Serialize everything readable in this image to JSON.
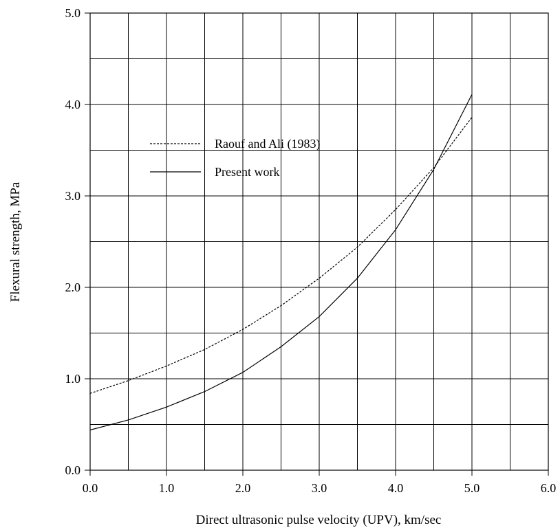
{
  "chart_data": {
    "type": "line",
    "title": "",
    "xlabel": "Direct ultrasonic pulse velocity (UPV), km/sec",
    "ylabel": "Flexural strength, MPa",
    "xlim": [
      0,
      6
    ],
    "ylim": [
      0,
      5
    ],
    "xticks": [
      0,
      1,
      2,
      3,
      4,
      5,
      6
    ],
    "yticks": [
      0,
      1,
      2,
      3,
      4,
      5
    ],
    "xtick_labels": [
      "0.0",
      "1.0",
      "2.0",
      "3.0",
      "4.0",
      "5.0",
      "6.0"
    ],
    "ytick_labels": [
      "0.0",
      "1.0",
      "2.0",
      "3.0",
      "4.0",
      "5.0"
    ],
    "grid": true,
    "grid_x_step": 0.5,
    "grid_y_step": 0.5,
    "legend_position": "upper-left",
    "series": [
      {
        "name": "Raouf and Ali (1983)",
        "style": "dashed",
        "x": [
          0,
          0.5,
          1.0,
          1.5,
          2.0,
          2.5,
          3.0,
          3.5,
          4.0,
          4.5,
          5.0
        ],
        "y": [
          0.84,
          0.98,
          1.14,
          1.32,
          1.54,
          1.8,
          2.1,
          2.44,
          2.85,
          3.31,
          3.86
        ]
      },
      {
        "name": "Present work",
        "style": "solid",
        "x": [
          0,
          0.5,
          1.0,
          1.5,
          2.0,
          2.5,
          3.0,
          3.5,
          4.0,
          4.5,
          5.0
        ],
        "y": [
          0.44,
          0.55,
          0.69,
          0.86,
          1.07,
          1.35,
          1.68,
          2.1,
          2.63,
          3.29,
          4.11
        ]
      }
    ]
  }
}
